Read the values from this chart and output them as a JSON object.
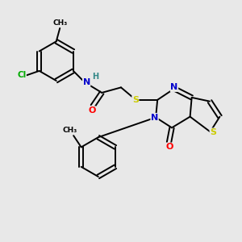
{
  "background_color": "#e8e8e8",
  "atom_colors": {
    "C": "#000000",
    "N": "#0000cc",
    "O": "#ff0000",
    "S": "#cccc00",
    "Cl": "#00aa00",
    "H": "#338888"
  },
  "bond_color": "#000000",
  "bond_lw": 1.4,
  "figsize": [
    3.0,
    3.0
  ],
  "dpi": 100
}
